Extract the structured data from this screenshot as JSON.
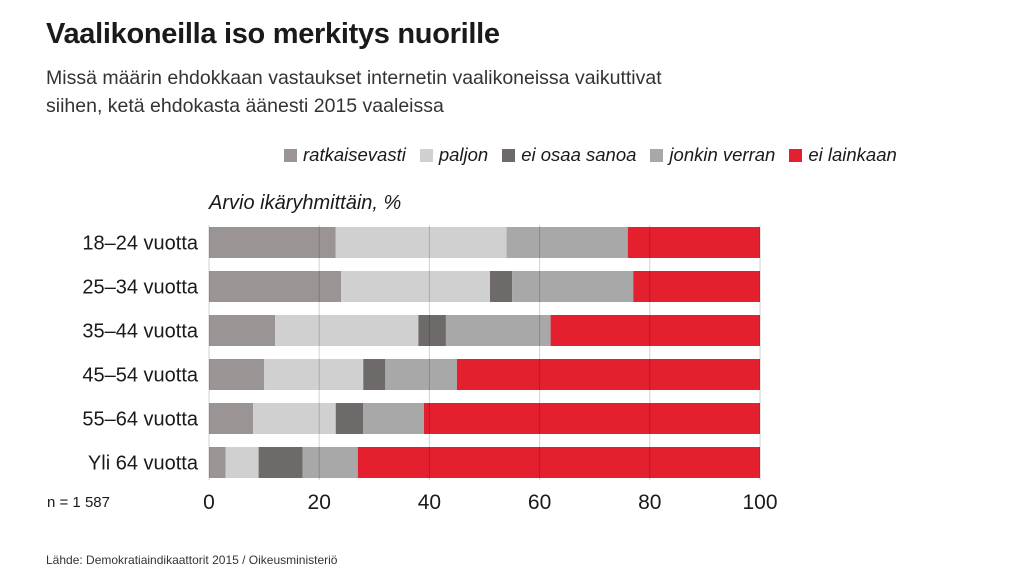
{
  "title": "Vaalikoneilla iso merkitys nuorille",
  "subtitle_line1": "Missä määrin ehdokkaan vastaukset internetin vaalikoneissa vaikuttivat",
  "subtitle_line2": "siihen, ketä ehdokasta äänesti 2015 vaaleissa",
  "note": "n = 1 587",
  "source": "Lähde: Demokratiaindikaattorit 2015 / Oikeusministeriö",
  "chart_data": {
    "type": "bar",
    "orientation": "horizontal",
    "stacked": true,
    "ylabel": "Arvio ikäryhmittäin, %",
    "categories": [
      "18–24 vuotta",
      "25–34 vuotta",
      "35–44 vuotta",
      "45–54 vuotta",
      "55–64 vuotta",
      "Yli 64 vuotta"
    ],
    "xlim": [
      0,
      100
    ],
    "xticks": [
      0,
      20,
      40,
      60,
      80,
      100
    ],
    "grid": true,
    "legend": "top",
    "series": [
      {
        "name": "ratkaisevasti",
        "color": "#9a9594",
        "values": [
          23,
          24,
          12,
          10,
          8,
          3
        ]
      },
      {
        "name": "paljon",
        "color": "#d0d0d0",
        "values": [
          31,
          27,
          26,
          18,
          15,
          6
        ]
      },
      {
        "name": "ei osaa sanoa",
        "color": "#6e6a69",
        "values": [
          0,
          4,
          5,
          4,
          5,
          8
        ]
      },
      {
        "name": "jonkin verran",
        "color": "#a8a8a8",
        "values": [
          22,
          22,
          19,
          13,
          11,
          10
        ]
      },
      {
        "name": "ei lainkaan",
        "color": "#e4202f",
        "values": [
          24,
          23,
          38,
          55,
          61,
          73
        ]
      }
    ]
  }
}
